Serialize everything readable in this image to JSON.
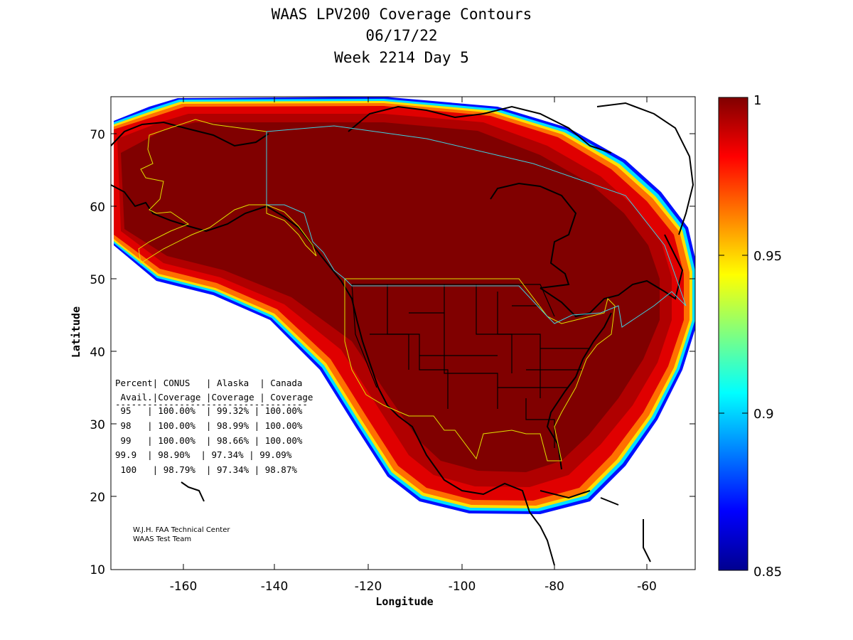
{
  "title": {
    "line1": "WAAS LPV200 Coverage Contours",
    "line2": "06/17/22",
    "line3": "Week 2214 Day 5"
  },
  "axes": {
    "xlabel": "Longitude",
    "ylabel": "Latitude",
    "xlim": [
      -175,
      -50
    ],
    "ylim": [
      10,
      75
    ],
    "xticks": [
      "-160",
      "-140",
      "-120",
      "-100",
      "-80",
      "-60"
    ],
    "yticks": [
      "10",
      "20",
      "30",
      "40",
      "50",
      "60",
      "70"
    ]
  },
  "colorbar": {
    "min": 0.85,
    "max": 1,
    "ticks": [
      "1",
      "0.95",
      "0.9",
      "0.85"
    ],
    "colormap": "jet"
  },
  "table": {
    "header1": "Percent| CONUS   | Alaska  | Canada",
    "header2": " Avail.|Coverage |Coverage | Coverage",
    "separator": "------------------------------------",
    "rows": [
      " 95   | 100.00%  | 99.32% | 100.00%",
      " 98   | 100.00%  | 98.99% | 100.00%",
      " 99   | 100.00%  | 98.66% | 100.00%",
      "99.9  | 98.90%  | 97.34% | 99.09%",
      " 100   | 98.79%  | 97.34% | 98.87%"
    ]
  },
  "credit": {
    "line1": "W.J.H. FAA Technical Center",
    "line2": "WAAS Test Team"
  },
  "colors": {
    "full": "#800000",
    "red": "#c00000",
    "boundary_us": "#e0e000",
    "boundary_canada": "#40d0e0"
  }
}
